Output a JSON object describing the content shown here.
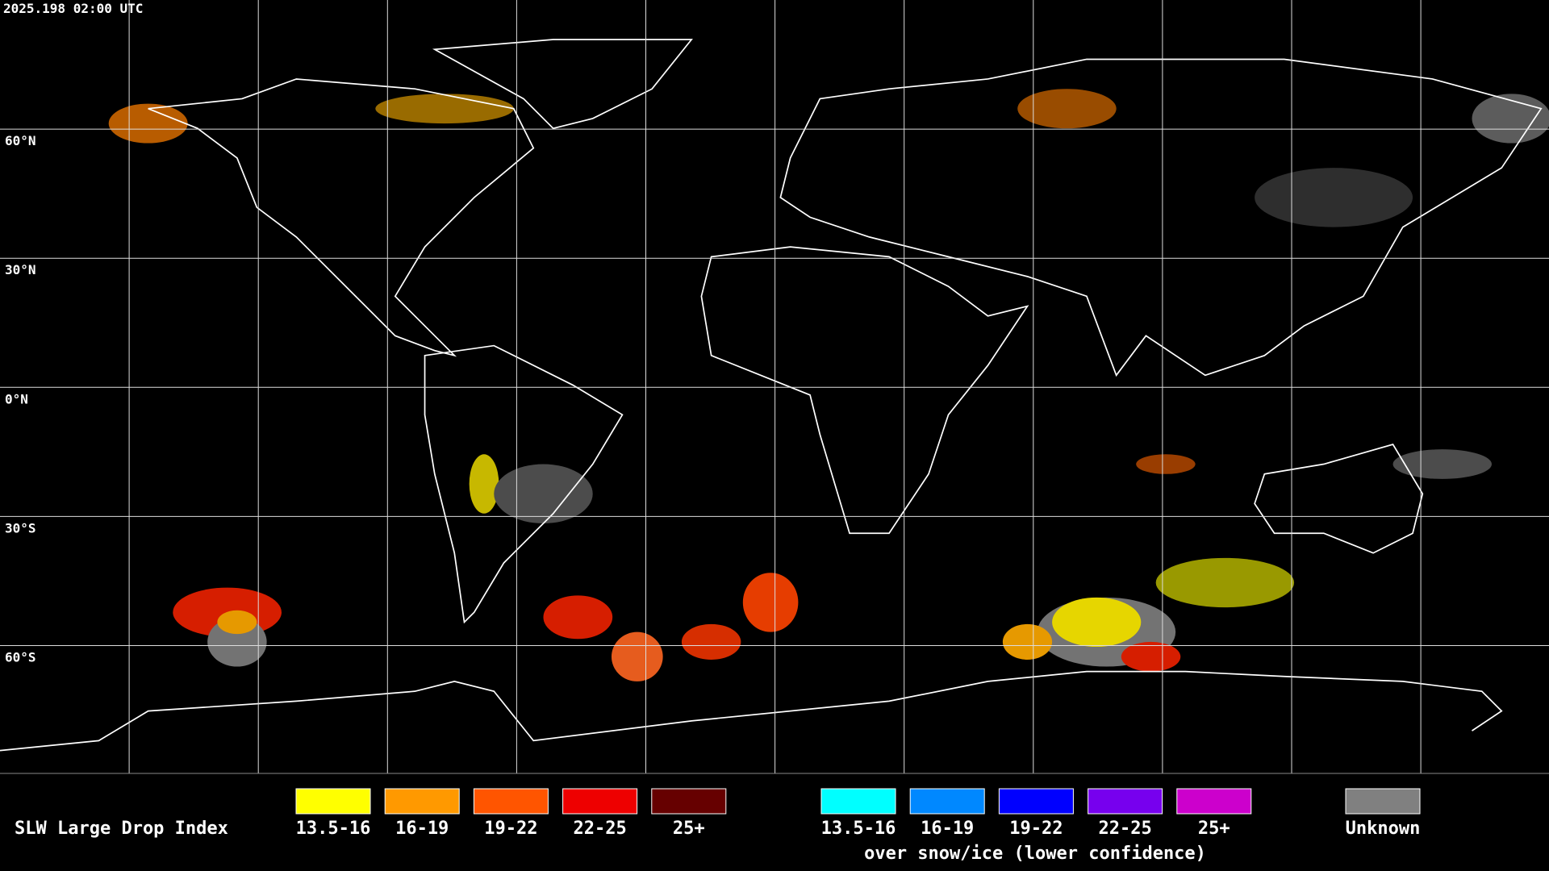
{
  "header": {
    "timestamp": "2025.198 02:00 UTC"
  },
  "map": {
    "latitude_labels": [
      "60°N",
      "30°N",
      "0°N",
      "30°S",
      "60°S"
    ]
  },
  "legend": {
    "title": "SLW Large Drop Index",
    "land": [
      {
        "label": "13.5-16",
        "color": "#ffff00"
      },
      {
        "label": "16-19",
        "color": "#ff9900"
      },
      {
        "label": "19-22",
        "color": "#ff5500"
      },
      {
        "label": "22-25",
        "color": "#ee0000"
      },
      {
        "label": "25+",
        "color": "#660000"
      }
    ],
    "snow": [
      {
        "label": "13.5-16",
        "color": "#00ffff"
      },
      {
        "label": "16-19",
        "color": "#0088ff"
      },
      {
        "label": "19-22",
        "color": "#0000ff"
      },
      {
        "label": "22-25",
        "color": "#7700ee"
      },
      {
        "label": "25+",
        "color": "#cc00cc"
      }
    ],
    "snow_caption": "over snow/ice (lower confidence)",
    "unknown": {
      "label": "Unknown",
      "color": "#808080"
    }
  }
}
